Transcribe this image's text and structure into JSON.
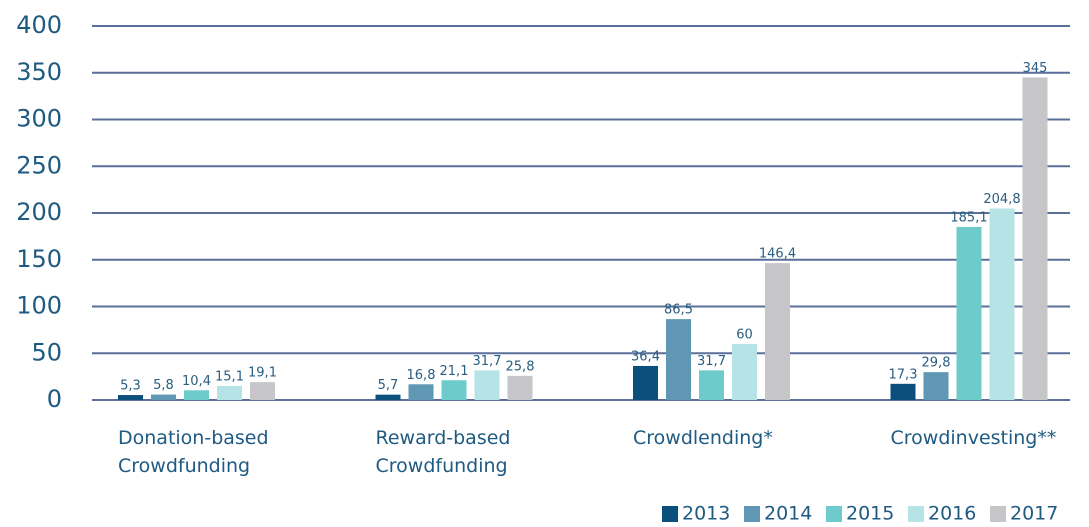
{
  "chart_data": {
    "type": "bar",
    "categories": [
      "Donation-based Crowdfunding",
      "Reward-based Crowdfunding",
      "Crowdlending*",
      "Crowdinvesting**"
    ],
    "series": [
      {
        "name": "2013",
        "color": "#0b4f7c",
        "values": [
          5.3,
          5.7,
          36.4,
          17.3
        ],
        "value_labels": [
          "5,3",
          "5,7",
          "36,4",
          "17,3"
        ]
      },
      {
        "name": "2014",
        "color": "#5f97b5",
        "values": [
          5.8,
          16.8,
          86.5,
          29.8
        ],
        "value_labels": [
          "5,8",
          "16,8",
          "86,5",
          "29,8"
        ]
      },
      {
        "name": "2015",
        "color": "#6dcbcc",
        "values": [
          10.4,
          21.1,
          31.7,
          185.1
        ],
        "value_labels": [
          "10,4",
          "21,1",
          "31,7",
          "185,1"
        ]
      },
      {
        "name": "2016",
        "color": "#b5e3e6",
        "values": [
          15.1,
          31.7,
          60,
          204.8
        ],
        "value_labels": [
          "15,1",
          "31,7",
          "60",
          "204,8"
        ]
      },
      {
        "name": "2017",
        "color": "#c6c6c8",
        "values": [
          19.1,
          25.8,
          146.4,
          345
        ],
        "value_labels": [
          "19,1",
          "25,8",
          "146,4",
          "345"
        ]
      }
    ],
    "ylim": [
      0,
      400
    ],
    "yticks": [
      0,
      50,
      100,
      150,
      200,
      250,
      300,
      350,
      400
    ],
    "grid": true,
    "legend": "bottom-right"
  }
}
